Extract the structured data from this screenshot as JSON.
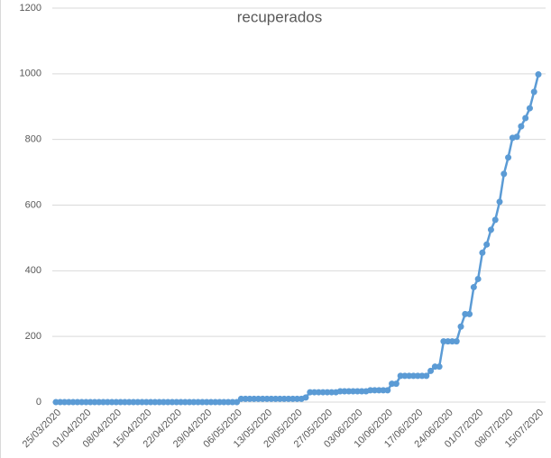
{
  "chart_data": {
    "type": "line",
    "title": "recuperados",
    "categories": [
      "25/03/2020",
      null,
      null,
      null,
      null,
      null,
      null,
      "01/04/2020",
      null,
      null,
      null,
      null,
      null,
      null,
      "08/04/2020",
      null,
      null,
      null,
      null,
      null,
      null,
      "15/04/2020",
      null,
      null,
      null,
      null,
      null,
      null,
      "22/04/2020",
      null,
      null,
      null,
      null,
      null,
      null,
      "29/04/2020",
      null,
      null,
      null,
      null,
      null,
      null,
      "06/05/2020",
      null,
      null,
      null,
      null,
      null,
      null,
      "13/05/2020",
      null,
      null,
      null,
      null,
      null,
      null,
      "20/05/2020",
      null,
      null,
      null,
      null,
      null,
      null,
      "27/05/2020",
      null,
      null,
      null,
      null,
      null,
      null,
      "03/06/2020",
      null,
      null,
      null,
      null,
      null,
      null,
      "10/06/2020",
      null,
      null,
      null,
      null,
      null,
      null,
      "17/06/2020",
      null,
      null,
      null,
      null,
      null,
      null,
      "24/06/2020",
      null,
      null,
      null,
      null,
      null,
      null,
      "01/07/2020",
      null,
      null,
      null,
      null,
      null,
      null,
      "08/07/2020",
      null,
      null,
      null,
      null,
      null,
      null,
      "15/07/2020"
    ],
    "values": [
      0,
      0,
      0,
      0,
      0,
      0,
      0,
      0,
      0,
      0,
      0,
      0,
      0,
      0,
      0,
      0,
      0,
      0,
      0,
      0,
      0,
      0,
      0,
      0,
      0,
      0,
      0,
      0,
      0,
      0,
      0,
      0,
      0,
      0,
      0,
      0,
      0,
      0,
      0,
      0,
      0,
      0,
      0,
      10,
      10,
      10,
      10,
      10,
      10,
      10,
      10,
      10,
      10,
      10,
      10,
      10,
      10,
      10,
      14,
      30,
      30,
      30,
      30,
      30,
      30,
      30,
      33,
      33,
      33,
      33,
      33,
      33,
      33,
      36,
      36,
      36,
      36,
      36,
      56,
      56,
      80,
      80,
      80,
      80,
      80,
      80,
      80,
      95,
      108,
      108,
      185,
      185,
      185,
      185,
      230,
      268,
      268,
      350,
      375,
      455,
      480,
      525,
      555,
      610,
      695,
      745,
      805,
      808,
      840,
      865,
      895,
      945,
      998
    ],
    "color": "#5b9bd5",
    "ylim": [
      0,
      1200
    ],
    "yticks": [
      0,
      200,
      400,
      600,
      800,
      1000,
      1200
    ],
    "grid": true
  }
}
